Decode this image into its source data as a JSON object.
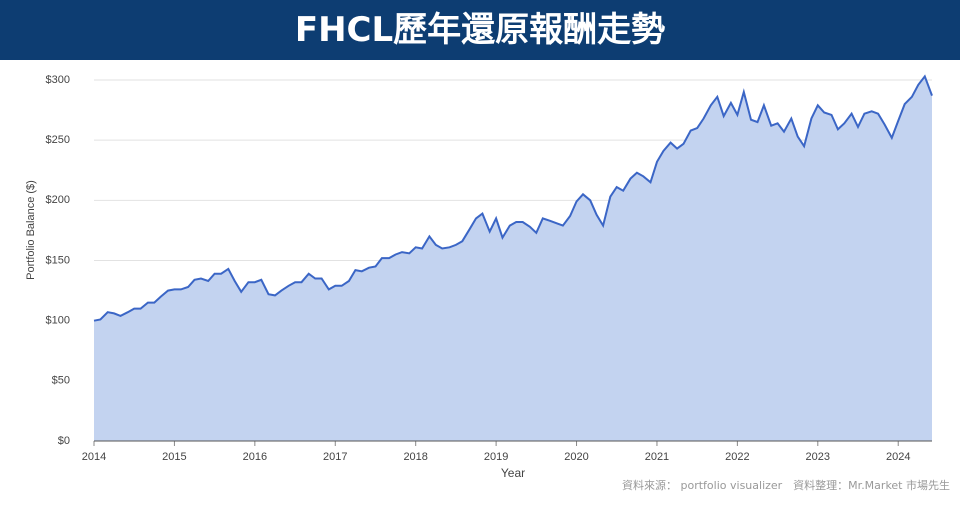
{
  "chart_data": {
    "type": "area",
    "title": "FHCL歷年還原報酬走勢",
    "x_label": "Year",
    "y_label": "Portfolio Balance ($)",
    "source": "資料來源： portfolio visualizer　資料整理：Mr.Market 市場先生",
    "color": "#3b66c6",
    "fill": "#c3d3f0",
    "grid": true,
    "xlim": [
      2014,
      2024.42
    ],
    "xticks": [
      2014,
      2015,
      2016,
      2017,
      2018,
      2019,
      2020,
      2021,
      2022,
      2023,
      2024
    ],
    "ylim": [
      0,
      300
    ],
    "yticks": [
      {
        "value": 0,
        "label": "$0"
      },
      {
        "value": 50,
        "label": "$50"
      },
      {
        "value": 100,
        "label": "$100"
      },
      {
        "value": 150,
        "label": "$150"
      },
      {
        "value": 200,
        "label": "$200"
      },
      {
        "value": 250,
        "label": "$250"
      },
      {
        "value": 300,
        "label": "$300"
      }
    ],
    "x": [
      2014,
      2014.08,
      2014.17,
      2014.25,
      2014.33,
      2014.42,
      2014.5,
      2014.58,
      2014.67,
      2014.75,
      2014.83,
      2014.92,
      2015,
      2015.08,
      2015.17,
      2015.25,
      2015.33,
      2015.42,
      2015.5,
      2015.58,
      2015.67,
      2015.75,
      2015.83,
      2015.92,
      2016,
      2016.08,
      2016.17,
      2016.25,
      2016.33,
      2016.42,
      2016.5,
      2016.58,
      2016.67,
      2016.75,
      2016.83,
      2016.92,
      2017,
      2017.08,
      2017.17,
      2017.25,
      2017.33,
      2017.42,
      2017.5,
      2017.58,
      2017.67,
      2017.75,
      2017.83,
      2017.92,
      2018,
      2018.08,
      2018.17,
      2018.25,
      2018.33,
      2018.42,
      2018.5,
      2018.58,
      2018.67,
      2018.75,
      2018.83,
      2018.92,
      2019,
      2019.08,
      2019.17,
      2019.25,
      2019.33,
      2019.42,
      2019.5,
      2019.58,
      2019.67,
      2019.75,
      2019.83,
      2019.92,
      2020,
      2020.08,
      2020.17,
      2020.25,
      2020.33,
      2020.42,
      2020.5,
      2020.58,
      2020.67,
      2020.75,
      2020.83,
      2020.92,
      2021,
      2021.08,
      2021.17,
      2021.25,
      2021.33,
      2021.42,
      2021.5,
      2021.58,
      2021.67,
      2021.75,
      2021.83,
      2021.92,
      2022,
      2022.08,
      2022.17,
      2022.25,
      2022.33,
      2022.42,
      2022.5,
      2022.58,
      2022.67,
      2022.75,
      2022.83,
      2022.92,
      2023,
      2023.08,
      2023.17,
      2023.25,
      2023.33,
      2023.42,
      2023.5,
      2023.58,
      2023.67,
      2023.75,
      2023.83,
      2023.92,
      2024,
      2024.08,
      2024.17,
      2024.25,
      2024.33,
      2024.42
    ],
    "values": [
      100,
      101,
      107,
      106,
      104,
      107,
      110,
      110,
      115,
      115,
      120,
      125,
      126,
      126,
      128,
      134,
      135,
      133,
      139,
      139,
      143,
      133,
      124,
      132,
      132,
      134,
      122,
      121,
      125,
      129,
      132,
      132,
      139,
      135,
      135,
      126,
      129,
      129,
      133,
      142,
      141,
      144,
      145,
      152,
      152,
      155,
      157,
      156,
      161,
      160,
      170,
      163,
      160,
      161,
      163,
      166,
      176,
      185,
      189,
      174,
      185,
      169,
      179,
      182,
      182,
      178,
      173,
      185,
      183,
      181,
      179,
      187,
      199,
      205,
      200,
      188,
      179,
      203,
      211,
      208,
      218,
      223,
      220,
      215,
      232,
      241,
      248,
      243,
      247,
      258,
      260,
      268,
      279,
      286,
      270,
      281,
      271,
      290,
      267,
      265,
      279,
      262,
      264,
      257,
      268,
      253,
      245,
      268,
      279,
      273,
      271,
      259,
      264,
      272,
      261,
      272,
      274,
      272,
      263,
      252,
      266,
      280,
      286,
      296,
      303,
      287
    ]
  }
}
